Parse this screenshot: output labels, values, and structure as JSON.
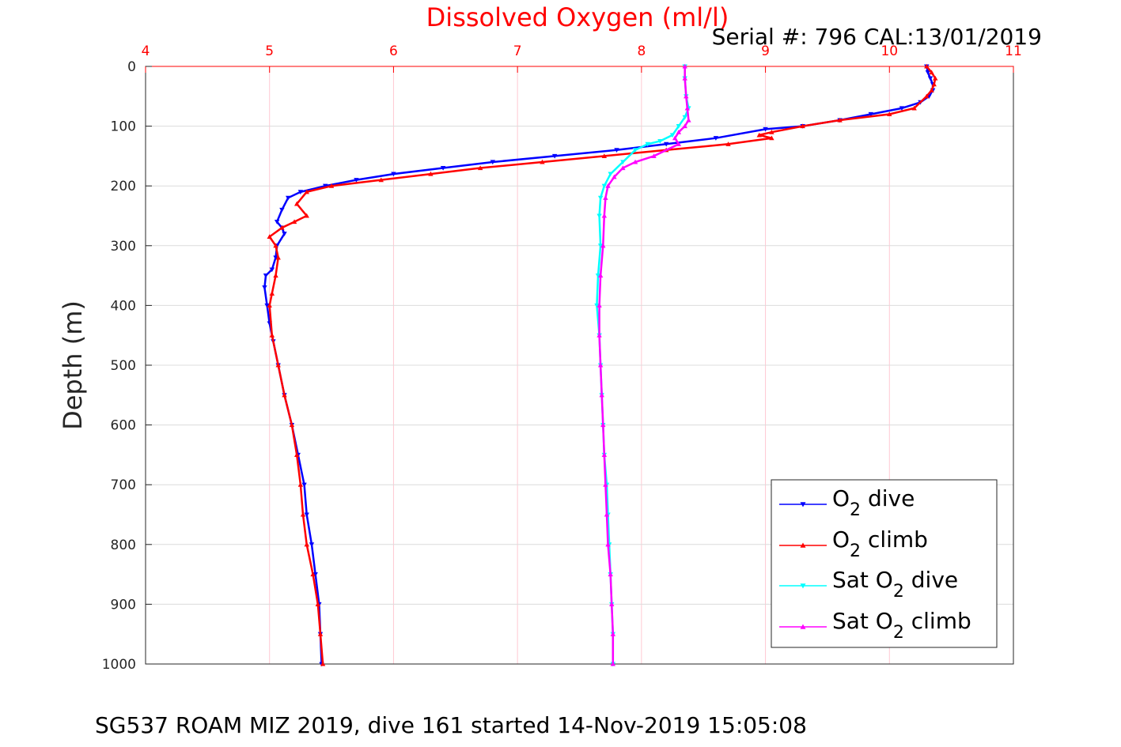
{
  "chart_data": {
    "type": "line",
    "title": "Dissolved Oxygen (ml/l)",
    "subtitle": "Serial #: 796  CAL:13/01/2019",
    "ylabel": "Depth (m)",
    "footer": "SG537 ROAM MIZ 2019, dive 161 started 14-Nov-2019 15:05:08",
    "xlim": [
      4,
      11
    ],
    "ylim": [
      0,
      1000
    ],
    "y_reversed": true,
    "x_axis_position": "top",
    "xticks": [
      "4",
      "5",
      "6",
      "7",
      "8",
      "9",
      "10",
      "11"
    ],
    "yticks": [
      "0",
      "100",
      "200",
      "300",
      "400",
      "500",
      "600",
      "700",
      "800",
      "900",
      "1000"
    ],
    "grid": true,
    "legend_position": "bottom-right",
    "colors": {
      "title": "#ff0000",
      "grid": "#ffc8d2",
      "axis": "#ff0000"
    },
    "series": [
      {
        "name": "O2 dive",
        "legend_main": "O",
        "legend_sub": "2",
        "legend_post": " dive",
        "color": "#0000ff",
        "marker": "triangle-down",
        "points": [
          [
            10.3,
            0
          ],
          [
            10.31,
            10
          ],
          [
            10.33,
            20
          ],
          [
            10.35,
            30
          ],
          [
            10.35,
            40
          ],
          [
            10.32,
            50
          ],
          [
            10.25,
            60
          ],
          [
            10.1,
            70
          ],
          [
            9.85,
            80
          ],
          [
            9.6,
            90
          ],
          [
            9.3,
            100
          ],
          [
            9.0,
            105
          ],
          [
            8.6,
            120
          ],
          [
            8.2,
            130
          ],
          [
            7.8,
            140
          ],
          [
            7.3,
            150
          ],
          [
            6.8,
            160
          ],
          [
            6.4,
            170
          ],
          [
            6.0,
            180
          ],
          [
            5.7,
            190
          ],
          [
            5.45,
            200
          ],
          [
            5.25,
            210
          ],
          [
            5.15,
            220
          ],
          [
            5.1,
            240
          ],
          [
            5.06,
            260
          ],
          [
            5.1,
            270
          ],
          [
            5.12,
            280
          ],
          [
            5.06,
            300
          ],
          [
            5.05,
            320
          ],
          [
            5.02,
            340
          ],
          [
            4.97,
            350
          ],
          [
            4.96,
            370
          ],
          [
            4.98,
            400
          ],
          [
            5.0,
            430
          ],
          [
            5.03,
            460
          ],
          [
            5.07,
            500
          ],
          [
            5.12,
            550
          ],
          [
            5.18,
            600
          ],
          [
            5.23,
            650
          ],
          [
            5.28,
            700
          ],
          [
            5.3,
            750
          ],
          [
            5.34,
            800
          ],
          [
            5.37,
            850
          ],
          [
            5.4,
            900
          ],
          [
            5.41,
            950
          ],
          [
            5.42,
            1000
          ]
        ]
      },
      {
        "name": "O2 climb",
        "legend_main": "O",
        "legend_sub": "2",
        "legend_post": " climb",
        "color": "#ff0000",
        "marker": "triangle-up",
        "points": [
          [
            10.3,
            0
          ],
          [
            10.34,
            10
          ],
          [
            10.37,
            20
          ],
          [
            10.36,
            30
          ],
          [
            10.34,
            40
          ],
          [
            10.3,
            50
          ],
          [
            10.2,
            70
          ],
          [
            10.0,
            80
          ],
          [
            9.6,
            90
          ],
          [
            9.3,
            100
          ],
          [
            9.05,
            110
          ],
          [
            8.95,
            115
          ],
          [
            9.05,
            120
          ],
          [
            8.7,
            130
          ],
          [
            8.2,
            140
          ],
          [
            7.7,
            150
          ],
          [
            7.2,
            160
          ],
          [
            6.7,
            170
          ],
          [
            6.3,
            180
          ],
          [
            5.9,
            190
          ],
          [
            5.5,
            200
          ],
          [
            5.3,
            210
          ],
          [
            5.22,
            230
          ],
          [
            5.3,
            250
          ],
          [
            5.2,
            260
          ],
          [
            5.1,
            270
          ],
          [
            5.0,
            285
          ],
          [
            5.05,
            300
          ],
          [
            5.07,
            320
          ],
          [
            5.05,
            350
          ],
          [
            5.02,
            380
          ],
          [
            5.0,
            400
          ],
          [
            5.02,
            450
          ],
          [
            5.07,
            500
          ],
          [
            5.12,
            550
          ],
          [
            5.18,
            600
          ],
          [
            5.22,
            650
          ],
          [
            5.25,
            700
          ],
          [
            5.27,
            750
          ],
          [
            5.3,
            800
          ],
          [
            5.35,
            850
          ],
          [
            5.39,
            900
          ],
          [
            5.41,
            950
          ],
          [
            5.43,
            1000
          ]
        ]
      },
      {
        "name": "Sat O2 dive",
        "legend_main": "Sat O",
        "legend_sub": "2",
        "legend_post": " dive",
        "color": "#00ffff",
        "marker": "triangle-down",
        "points": [
          [
            8.35,
            0
          ],
          [
            8.35,
            20
          ],
          [
            8.36,
            50
          ],
          [
            8.38,
            70
          ],
          [
            8.35,
            85
          ],
          [
            8.3,
            100
          ],
          [
            8.25,
            115
          ],
          [
            8.15,
            125
          ],
          [
            8.05,
            130
          ],
          [
            7.95,
            140
          ],
          [
            7.85,
            160
          ],
          [
            7.75,
            180
          ],
          [
            7.7,
            200
          ],
          [
            7.67,
            220
          ],
          [
            7.66,
            250
          ],
          [
            7.67,
            300
          ],
          [
            7.65,
            350
          ],
          [
            7.64,
            400
          ],
          [
            7.66,
            450
          ],
          [
            7.67,
            500
          ],
          [
            7.68,
            550
          ],
          [
            7.69,
            600
          ],
          [
            7.7,
            650
          ],
          [
            7.72,
            700
          ],
          [
            7.73,
            750
          ],
          [
            7.74,
            800
          ],
          [
            7.75,
            850
          ],
          [
            7.76,
            900
          ],
          [
            7.77,
            950
          ],
          [
            7.77,
            1000
          ]
        ]
      },
      {
        "name": "Sat O2 climb",
        "legend_main": "Sat O",
        "legend_sub": "2",
        "legend_post": " climb",
        "color": "#ff00ff",
        "marker": "triangle-up",
        "points": [
          [
            8.35,
            0
          ],
          [
            8.35,
            20
          ],
          [
            8.36,
            50
          ],
          [
            8.37,
            70
          ],
          [
            8.38,
            90
          ],
          [
            8.35,
            100
          ],
          [
            8.3,
            110
          ],
          [
            8.27,
            120
          ],
          [
            8.3,
            130
          ],
          [
            8.1,
            150
          ],
          [
            7.95,
            160
          ],
          [
            7.85,
            170
          ],
          [
            7.78,
            185
          ],
          [
            7.73,
            200
          ],
          [
            7.71,
            220
          ],
          [
            7.7,
            250
          ],
          [
            7.69,
            300
          ],
          [
            7.67,
            350
          ],
          [
            7.66,
            400
          ],
          [
            7.66,
            450
          ],
          [
            7.67,
            500
          ],
          [
            7.68,
            550
          ],
          [
            7.69,
            600
          ],
          [
            7.7,
            650
          ],
          [
            7.71,
            700
          ],
          [
            7.72,
            750
          ],
          [
            7.73,
            800
          ],
          [
            7.75,
            850
          ],
          [
            7.76,
            900
          ],
          [
            7.77,
            950
          ],
          [
            7.77,
            1000
          ]
        ]
      }
    ]
  }
}
